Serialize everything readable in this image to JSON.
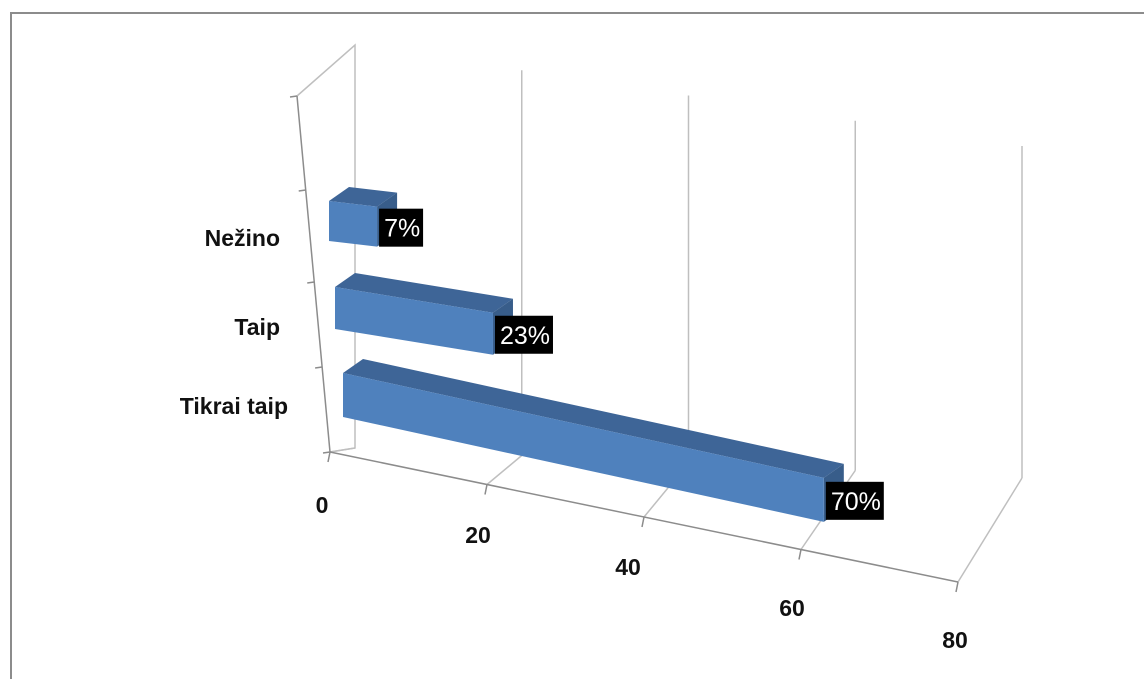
{
  "chart_data": {
    "type": "bar",
    "orientation": "horizontal",
    "style": "3d",
    "categories": [
      "Tikrai taip",
      "Taip",
      "Nežino"
    ],
    "values": [
      70,
      23,
      7
    ],
    "data_labels": [
      "70%",
      "23%",
      "7%"
    ],
    "xlim": [
      0,
      80
    ],
    "x_ticks": [
      "0",
      "20",
      "40",
      "60",
      "80"
    ],
    "grid": true,
    "title": "",
    "xlabel": "",
    "ylabel": ""
  },
  "colors": {
    "bar_front": "#4f81bd",
    "bar_top": "#3e6597",
    "bar_side": "#385d8a",
    "label_bg": "#000000",
    "label_text": "#ffffff",
    "grid": "#bfbfbf",
    "axis": "#8c8c8c",
    "frame": "#8c8c8c"
  }
}
